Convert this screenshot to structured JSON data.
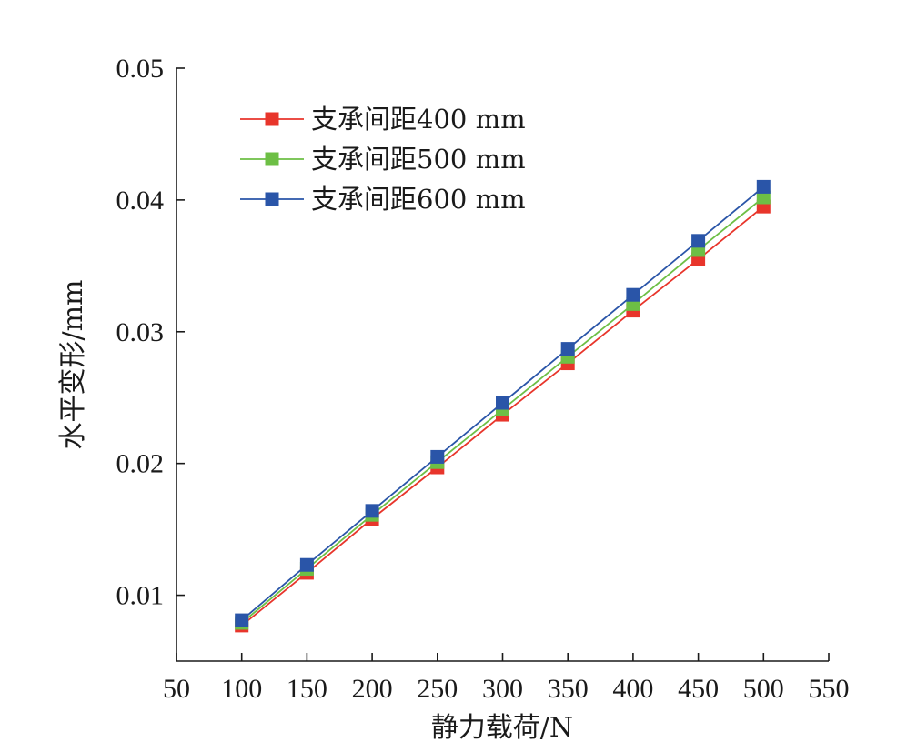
{
  "chart_data": {
    "type": "line",
    "title": "",
    "xlabel": "静力载荷/N",
    "ylabel": "水平变形/mm",
    "xlim": [
      50,
      550
    ],
    "ylim": [
      0.005,
      0.05
    ],
    "x_ticks": [
      50,
      100,
      150,
      200,
      250,
      300,
      350,
      400,
      450,
      500,
      550
    ],
    "x_tick_labels": [
      "50",
      "100",
      "150",
      "200",
      "250",
      "300",
      "350",
      "400",
      "450",
      "500",
      "550"
    ],
    "y_ticks": [
      0.01,
      0.02,
      0.03,
      0.04,
      0.05
    ],
    "y_tick_labels": [
      "0.01",
      "0.02",
      "0.03",
      "0.04",
      "0.05"
    ],
    "grid": false,
    "legend_position": "top-left",
    "x": [
      100,
      150,
      200,
      250,
      300,
      350,
      400,
      450,
      500
    ],
    "series": [
      {
        "name": "支承间距400 mm",
        "color": "#e8352b",
        "marker": "square",
        "values": [
          0.0077,
          0.0117,
          0.0158,
          0.0197,
          0.0237,
          0.0276,
          0.0316,
          0.0355,
          0.0395
        ]
      },
      {
        "name": "支承间距500 mm",
        "color": "#6dbf45",
        "marker": "square",
        "values": [
          0.0079,
          0.012,
          0.0161,
          0.0201,
          0.0241,
          0.0281,
          0.0321,
          0.0362,
          0.0402
        ]
      },
      {
        "name": "支承间距600 mm",
        "color": "#2a55a8",
        "marker": "square",
        "values": [
          0.0081,
          0.0123,
          0.0164,
          0.0205,
          0.0246,
          0.0287,
          0.0328,
          0.0369,
          0.041
        ]
      }
    ]
  }
}
